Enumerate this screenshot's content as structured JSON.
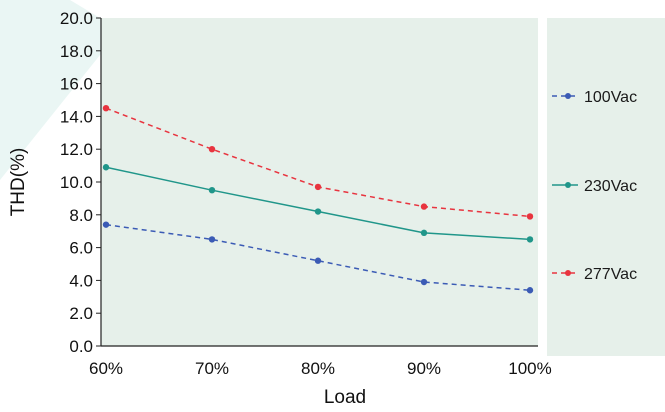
{
  "chart_data": {
    "type": "line",
    "xlabel": "Load",
    "ylabel": "THD(%)",
    "categories": [
      "60%",
      "70%",
      "80%",
      "90%",
      "100%"
    ],
    "ylim": [
      0,
      20
    ],
    "yticks": [
      "0.0",
      "2.0",
      "4.0",
      "6.0",
      "8.0",
      "10.0",
      "12.0",
      "14.0",
      "16.0",
      "18.0",
      "20.0"
    ],
    "grid": false,
    "legend_position": "right",
    "plot_background": "#e6f0ea",
    "series": [
      {
        "name": "100Vac",
        "values": [
          7.4,
          6.5,
          5.2,
          3.9,
          3.4
        ],
        "color": "#3b5bb5",
        "style": "dashed"
      },
      {
        "name": "230Vac",
        "values": [
          10.9,
          9.5,
          8.2,
          6.9,
          6.5
        ],
        "color": "#20968a",
        "style": "solid"
      },
      {
        "name": "277Vac",
        "values": [
          14.5,
          12.0,
          9.7,
          8.5,
          7.9
        ],
        "color": "#e8343f",
        "style": "dashed"
      }
    ]
  }
}
